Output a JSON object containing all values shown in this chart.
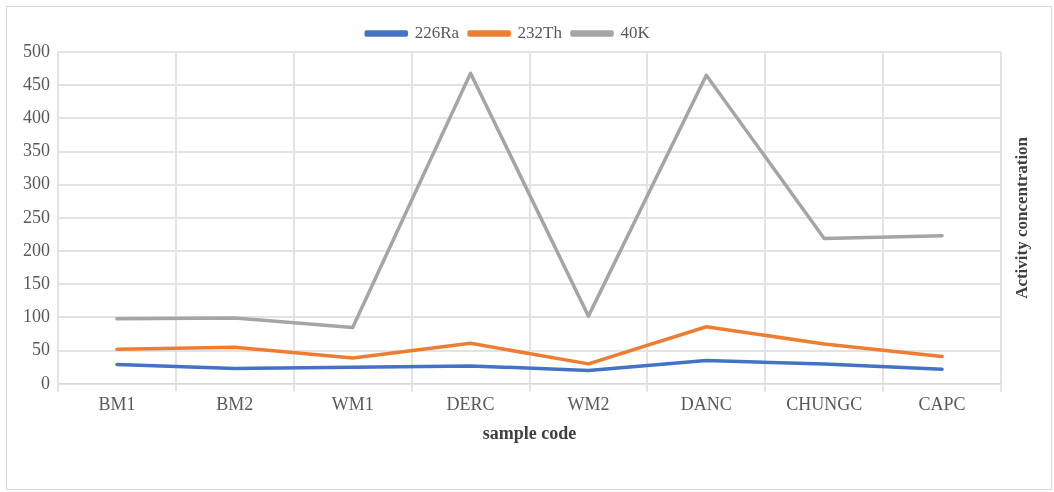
{
  "chart_data": {
    "type": "line",
    "xlabel": "sample code",
    "ylabel": "Activity concentration",
    "categories": [
      "BM1",
      "BM2",
      "WM1",
      "DERC",
      "WM2",
      "DANC",
      "CHUNGC",
      "CAPC"
    ],
    "series": [
      {
        "name": "226Ra",
        "color": "#4472c4",
        "values": [
          29,
          23,
          25,
          27,
          20,
          35,
          30,
          22
        ]
      },
      {
        "name": "232Th",
        "color": "#ed7d31",
        "values": [
          52,
          55,
          39,
          61,
          30,
          86,
          60,
          41
        ]
      },
      {
        "name": "40K",
        "color": "#a5a5a5",
        "values": [
          98,
          99,
          85,
          468,
          102,
          465,
          219,
          223
        ]
      }
    ],
    "ylim": [
      0,
      500
    ],
    "yticks": [
      0,
      50,
      100,
      150,
      200,
      250,
      300,
      350,
      400,
      450,
      500
    ],
    "grid": true,
    "legend": "top",
    "marker": "none",
    "line_style": "solid"
  }
}
